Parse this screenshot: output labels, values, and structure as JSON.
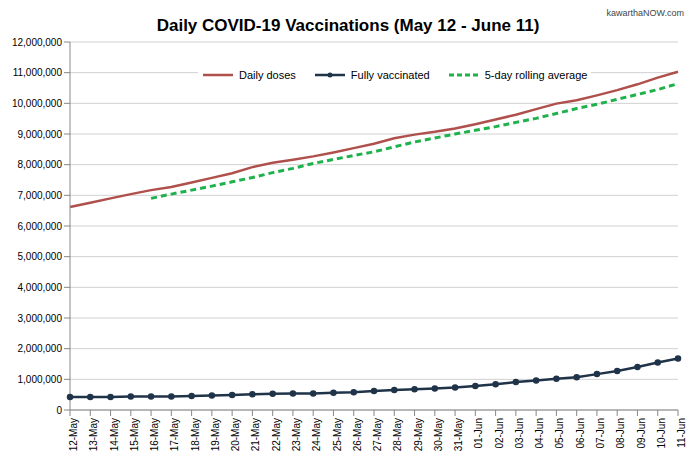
{
  "chart_data": {
    "type": "line",
    "title": "Daily COVID-19 Vaccinations (May 12 - June 11)",
    "annotations": [
      "kawarthaNOW.com"
    ],
    "categories": [
      "12-May",
      "13-May",
      "14-May",
      "15-May",
      "16-May",
      "17-May",
      "18-May",
      "19-May",
      "20-May",
      "21-May",
      "22-May",
      "23-May",
      "24-May",
      "25-May",
      "26-May",
      "27-May",
      "28-May",
      "29-May",
      "30-May",
      "31-May",
      "01-Jun",
      "02-Jun",
      "03-Jun",
      "04-Jun",
      "05-Jun",
      "06-Jun",
      "07-Jun",
      "08-Jun",
      "09-Jun",
      "10-Jun",
      "11-Jun"
    ],
    "series": [
      {
        "name": "Daily doses",
        "color": "#b0504c",
        "marker": "none",
        "line_style": "solid",
        "values": [
          6620000,
          6760000,
          6900000,
          7040000,
          7170000,
          7270000,
          7420000,
          7570000,
          7720000,
          7920000,
          8060000,
          8160000,
          8270000,
          8400000,
          8540000,
          8680000,
          8860000,
          8980000,
          9070000,
          9180000,
          9320000,
          9470000,
          9630000,
          9810000,
          9990000,
          10100000,
          10260000,
          10430000,
          10620000,
          10840000,
          11030000
        ]
      },
      {
        "name": "Fully vaccinated",
        "color": "#1f3349",
        "marker": "circle",
        "line_style": "solid",
        "values": [
          420000,
          420000,
          420000,
          440000,
          440000,
          440000,
          460000,
          470000,
          490000,
          510000,
          530000,
          540000,
          540000,
          560000,
          580000,
          620000,
          650000,
          680000,
          700000,
          730000,
          780000,
          840000,
          910000,
          960000,
          1020000,
          1070000,
          1170000,
          1270000,
          1400000,
          1550000,
          1680000
        ]
      },
      {
        "name": "5-day rolling average",
        "color": "#1fb14c",
        "marker": "none",
        "line_style": "dashed",
        "values": [
          null,
          null,
          null,
          null,
          6900000,
          7040000,
          7170000,
          7300000,
          7440000,
          7580000,
          7740000,
          7880000,
          8040000,
          8170000,
          8300000,
          8420000,
          8580000,
          8740000,
          8870000,
          9000000,
          9120000,
          9240000,
          9380000,
          9510000,
          9670000,
          9830000,
          9970000,
          10130000,
          10290000,
          10450000,
          10640000
        ]
      }
    ],
    "ylim": [
      0,
      12000000
    ],
    "yticks": [
      0,
      {
        "value": 1000000,
        "label": "1,000,000"
      },
      {
        "value": 2000000,
        "label": "2,000,000"
      },
      {
        "value": 3000000,
        "label": "3,000,000"
      },
      {
        "value": 4000000,
        "label": "4,000,000"
      },
      {
        "value": 5000000,
        "label": "5,000,000"
      },
      {
        "value": 6000000,
        "label": "6,000,000"
      },
      {
        "value": 7000000,
        "label": "7,000,000"
      },
      {
        "value": 8000000,
        "label": "8,000,000"
      },
      {
        "value": 9000000,
        "label": "9,000,000"
      },
      {
        "value": 10000000,
        "label": "10,000,000"
      },
      {
        "value": 11000000,
        "label": "11,000,000"
      },
      {
        "value": 12000000,
        "label": "12,000,000"
      }
    ],
    "grid": true,
    "legend": "top"
  }
}
